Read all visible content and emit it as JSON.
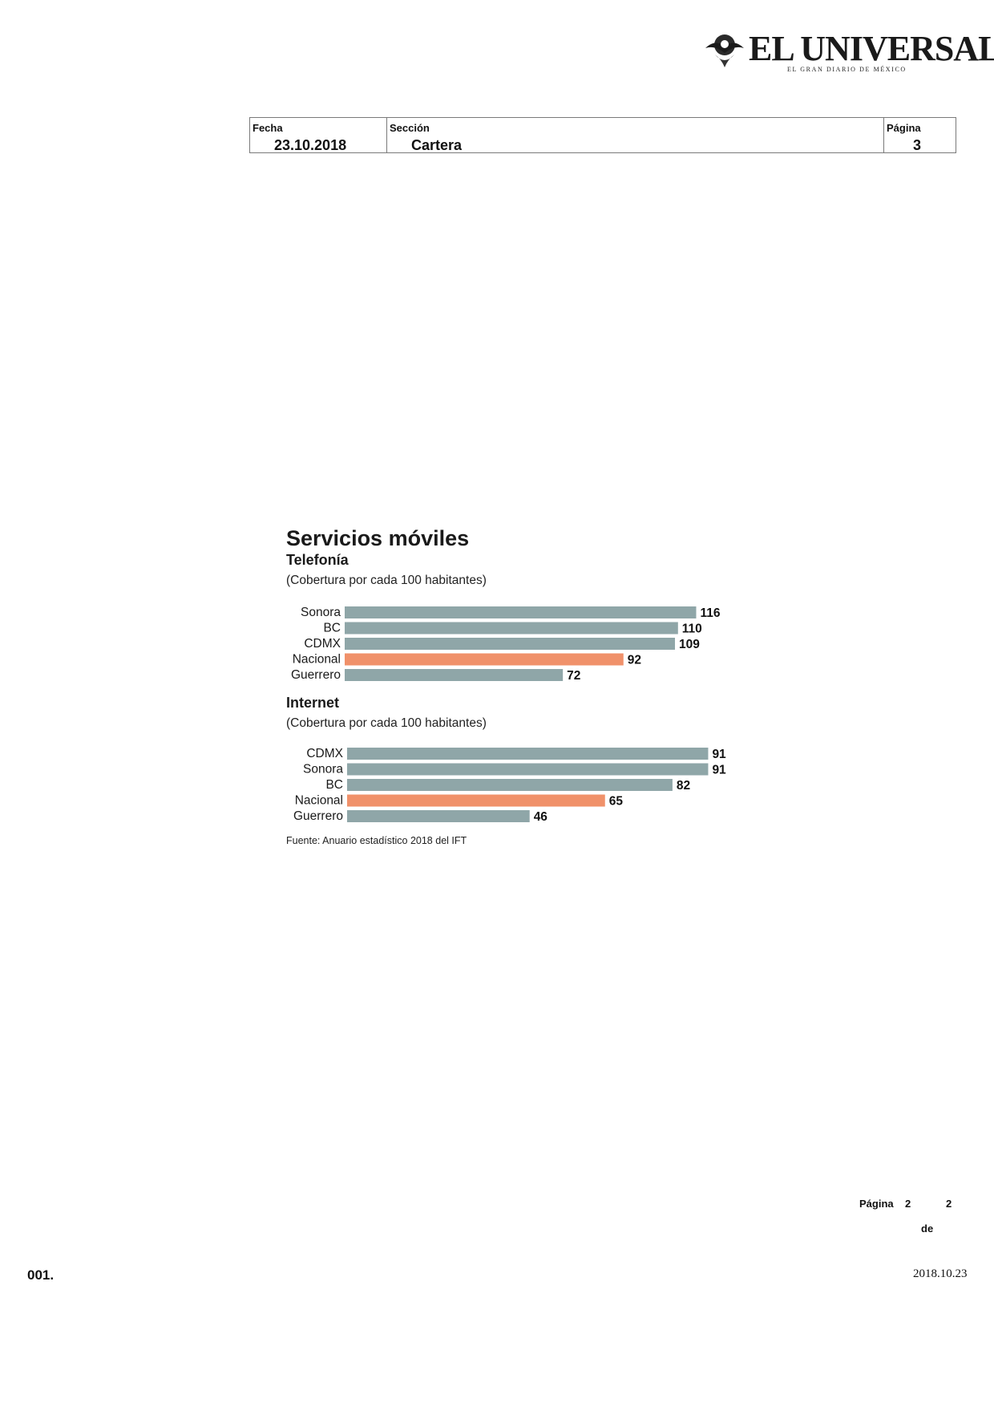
{
  "header": {
    "logo_text": "EL UNIVERSAL",
    "logo_tagline": "EL GRAN DIARIO DE MÉXICO"
  },
  "info": {
    "fecha_label": "Fecha",
    "fecha_value": "23.10.2018",
    "seccion_label": "Sección",
    "seccion_value": "Cartera",
    "pagina_label": "Página",
    "pagina_value": "3"
  },
  "chart_data": {
    "type": "bar",
    "orientation": "horizontal",
    "title": "Servicios móviles",
    "source": "Fuente: Anuario estadístico 2018 del IFT",
    "colors": {
      "state": "#8fa6a8",
      "national": "#f0916a"
    },
    "panels": [
      {
        "subtitle": "Telefonía",
        "unit": "(Cobertura por cada 100 habitantes)",
        "categories": [
          "Sonora",
          "BC",
          "CDMX",
          "Nacional",
          "Guerrero"
        ],
        "values": [
          116,
          110,
          109,
          92,
          72
        ]
      },
      {
        "subtitle": "Internet",
        "unit": "(Cobertura por cada 100 habitantes)",
        "categories": [
          "CDMX",
          "Sonora",
          "BC",
          "Nacional",
          "Guerrero"
        ],
        "values": [
          91,
          91,
          82,
          65,
          46
        ]
      }
    ]
  },
  "footer": {
    "pagina_label": "Página",
    "page_current": "2",
    "page_of": "de",
    "page_total": "2",
    "doc_number": "001.",
    "doc_date": "2018.10.23"
  }
}
